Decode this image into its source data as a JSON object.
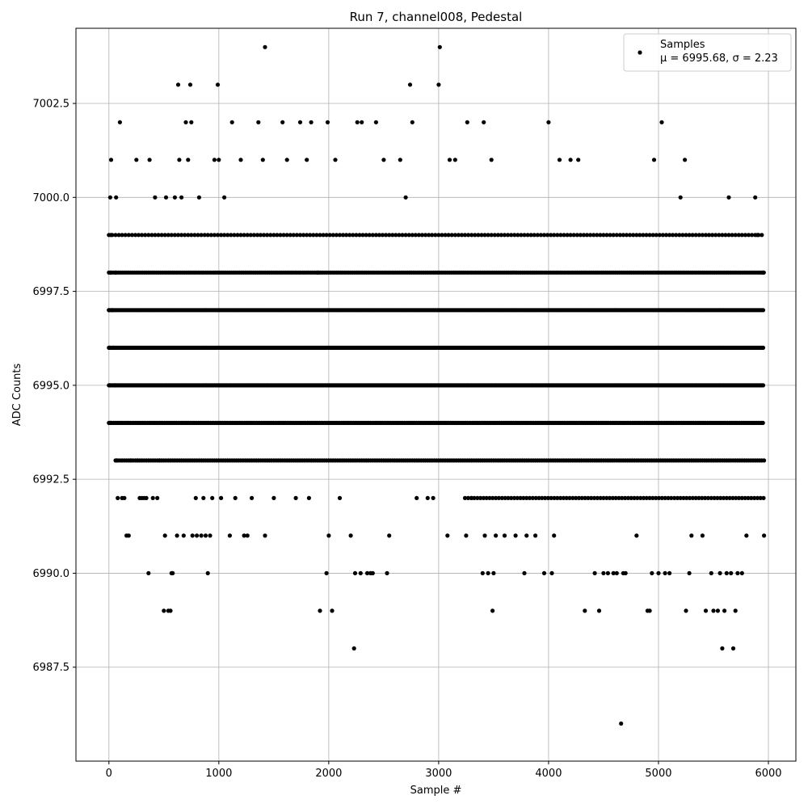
{
  "chart_data": {
    "type": "scatter",
    "title": "Run 7, channel008, Pedestal",
    "xlabel": "Sample #",
    "ylabel": "ADC Counts",
    "xlim": [
      -300,
      6250
    ],
    "ylim": [
      6985.0,
      7004.5
    ],
    "x_ticks": [
      0,
      1000,
      2000,
      3000,
      4000,
      5000,
      6000
    ],
    "x_tick_labels": [
      "0",
      "1000",
      "2000",
      "3000",
      "4000",
      "5000",
      "6000"
    ],
    "y_ticks": [
      6987.5,
      6990.0,
      6992.5,
      6995.0,
      6997.5,
      7000.0,
      7002.5
    ],
    "y_tick_labels": [
      "6987.5",
      "6990.0",
      "6992.5",
      "6995.0",
      "6997.5",
      "7000.0",
      "7002.5"
    ],
    "grid": true,
    "legend_position": "top-right",
    "marker_color": "#000000",
    "series": [
      {
        "name": "Samples",
        "stats_label": "μ = 6995.68, σ = 2.23",
        "points": [
          [
            0,
            6997
          ],
          [
            5,
            6996
          ],
          [
            8,
            6995
          ],
          [
            10,
            6994
          ],
          [
            12,
            7000
          ],
          [
            15,
            6998
          ],
          [
            18,
            6999
          ],
          [
            20,
            7001
          ],
          [
            30,
            6997
          ],
          [
            40,
            6996
          ],
          [
            55,
            6995
          ],
          [
            60,
            6998
          ],
          [
            65,
            7000
          ],
          [
            70,
            6993
          ],
          [
            80,
            6992
          ],
          [
            100,
            7002
          ],
          [
            120,
            6992
          ],
          [
            140,
            6992
          ],
          [
            160,
            6991
          ],
          [
            180,
            6991
          ],
          [
            200,
            6993
          ],
          [
            250,
            7001
          ],
          [
            260,
            6993
          ],
          [
            280,
            6992
          ],
          [
            300,
            6992
          ],
          [
            320,
            6992
          ],
          [
            340,
            6992
          ],
          [
            360,
            6990
          ],
          [
            370,
            7001
          ],
          [
            400,
            6992
          ],
          [
            420,
            7000
          ],
          [
            440,
            6992
          ],
          [
            460,
            6993
          ],
          [
            500,
            6989
          ],
          [
            510,
            6991
          ],
          [
            520,
            7000
          ],
          [
            540,
            6989
          ],
          [
            560,
            6989
          ],
          [
            570,
            6990
          ],
          [
            580,
            6990
          ],
          [
            600,
            7000
          ],
          [
            620,
            6991
          ],
          [
            630,
            7003
          ],
          [
            640,
            7001
          ],
          [
            660,
            7000
          ],
          [
            680,
            6991
          ],
          [
            700,
            7002
          ],
          [
            720,
            7001
          ],
          [
            740,
            7003
          ],
          [
            750,
            7002
          ],
          [
            760,
            6991
          ],
          [
            790,
            6992
          ],
          [
            800,
            6991
          ],
          [
            820,
            7000
          ],
          [
            840,
            6991
          ],
          [
            860,
            6992
          ],
          [
            880,
            6991
          ],
          [
            900,
            6990
          ],
          [
            920,
            6991
          ],
          [
            940,
            6992
          ],
          [
            960,
            7001
          ],
          [
            990,
            7003
          ],
          [
            1000,
            7001
          ],
          [
            1020,
            6992
          ],
          [
            1050,
            7000
          ],
          [
            1100,
            6991
          ],
          [
            1120,
            7002
          ],
          [
            1150,
            6992
          ],
          [
            1200,
            7001
          ],
          [
            1230,
            6991
          ],
          [
            1260,
            6991
          ],
          [
            1300,
            6992
          ],
          [
            1360,
            7002
          ],
          [
            1400,
            7001
          ],
          [
            1420,
            7004
          ],
          [
            1420,
            6991
          ],
          [
            1500,
            6992
          ],
          [
            1580,
            7002
          ],
          [
            1620,
            7001
          ],
          [
            1700,
            6992
          ],
          [
            1740,
            7002
          ],
          [
            1800,
            7001
          ],
          [
            1820,
            6992
          ],
          [
            1840,
            7002
          ],
          [
            1900,
            6998
          ],
          [
            1920,
            6989
          ],
          [
            1980,
            6990
          ],
          [
            1990,
            7002
          ],
          [
            2000,
            6991
          ],
          [
            2030,
            6989
          ],
          [
            2060,
            7001
          ],
          [
            2100,
            6992
          ],
          [
            2200,
            6991
          ],
          [
            2230,
            6988
          ],
          [
            2240,
            6990
          ],
          [
            2260,
            7002
          ],
          [
            2290,
            6990
          ],
          [
            2300,
            7002
          ],
          [
            2350,
            6990
          ],
          [
            2380,
            6990
          ],
          [
            2400,
            6990
          ],
          [
            2430,
            7002
          ],
          [
            2500,
            7001
          ],
          [
            2530,
            6990
          ],
          [
            2550,
            6991
          ],
          [
            2650,
            7001
          ],
          [
            2700,
            7000
          ],
          [
            2740,
            7003
          ],
          [
            2760,
            7002
          ],
          [
            2800,
            6992
          ],
          [
            2900,
            6992
          ],
          [
            2950,
            6992
          ],
          [
            3000,
            7003
          ],
          [
            3010,
            7004
          ],
          [
            3080,
            6991
          ],
          [
            3100,
            7001
          ],
          [
            3150,
            7001
          ],
          [
            3250,
            6991
          ],
          [
            3260,
            7002
          ],
          [
            3300,
            6992
          ],
          [
            3400,
            6990
          ],
          [
            3410,
            7002
          ],
          [
            3420,
            6991
          ],
          [
            3450,
            6990
          ],
          [
            3480,
            7001
          ],
          [
            3490,
            6989
          ],
          [
            3500,
            6990
          ],
          [
            3520,
            6991
          ],
          [
            3600,
            6991
          ],
          [
            3700,
            6991
          ],
          [
            3780,
            6990
          ],
          [
            3800,
            6991
          ],
          [
            3880,
            6991
          ],
          [
            3960,
            6990
          ],
          [
            4000,
            7002
          ],
          [
            4030,
            6990
          ],
          [
            4050,
            6991
          ],
          [
            4100,
            7001
          ],
          [
            4200,
            7001
          ],
          [
            4270,
            7001
          ],
          [
            4330,
            6989
          ],
          [
            4420,
            6990
          ],
          [
            4460,
            6989
          ],
          [
            4500,
            6990
          ],
          [
            4540,
            6990
          ],
          [
            4590,
            6990
          ],
          [
            4620,
            6990
          ],
          [
            4660,
            6986
          ],
          [
            4680,
            6990
          ],
          [
            4700,
            6990
          ],
          [
            4800,
            6991
          ],
          [
            4900,
            6989
          ],
          [
            4920,
            6989
          ],
          [
            4940,
            6990
          ],
          [
            4960,
            7001
          ],
          [
            5000,
            6990
          ],
          [
            5030,
            7002
          ],
          [
            5060,
            6990
          ],
          [
            5100,
            6990
          ],
          [
            5200,
            7000
          ],
          [
            5240,
            7001
          ],
          [
            5250,
            6989
          ],
          [
            5280,
            6990
          ],
          [
            5300,
            6991
          ],
          [
            5400,
            6991
          ],
          [
            5430,
            6989
          ],
          [
            5480,
            6990
          ],
          [
            5500,
            6989
          ],
          [
            5540,
            6989
          ],
          [
            5560,
            6990
          ],
          [
            5580,
            6988
          ],
          [
            5600,
            6989
          ],
          [
            5620,
            6990
          ],
          [
            5640,
            7000
          ],
          [
            5660,
            6990
          ],
          [
            5680,
            6988
          ],
          [
            5700,
            6989
          ],
          [
            5720,
            6990
          ],
          [
            5760,
            6990
          ],
          [
            5800,
            6991
          ],
          [
            5880,
            7000
          ],
          [
            5900,
            6999
          ],
          [
            5950,
            6998
          ],
          [
            5960,
            6991
          ]
        ]
      }
    ],
    "dense_rows": [
      {
        "y": 6999,
        "x_start": 0,
        "x_end": 5960,
        "step": 30
      },
      {
        "y": 6998,
        "x_start": 0,
        "x_end": 5960,
        "step": 18
      },
      {
        "y": 6997,
        "x_start": 0,
        "x_end": 5960,
        "step": 12
      },
      {
        "y": 6996,
        "x_start": 0,
        "x_end": 5960,
        "step": 12
      },
      {
        "y": 6995,
        "x_start": 0,
        "x_end": 5960,
        "step": 12
      },
      {
        "y": 6994,
        "x_start": 0,
        "x_end": 5960,
        "step": 14
      },
      {
        "y": 6993,
        "x_start": 60,
        "x_end": 5960,
        "step": 20
      },
      {
        "y": 6992,
        "x_start": 3240,
        "x_end": 5960,
        "step": 28
      }
    ]
  }
}
